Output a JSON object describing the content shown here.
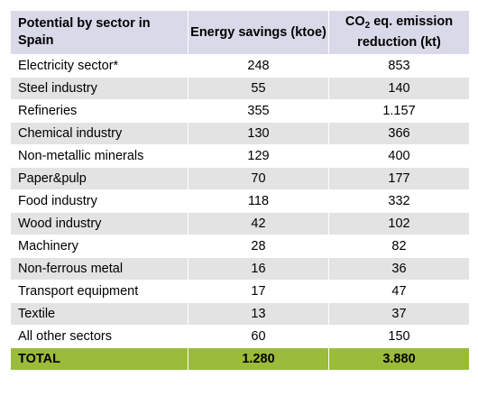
{
  "table": {
    "headers": {
      "sector": "Potential by sector in Spain",
      "energy": "Energy savings (ktoe)",
      "co2_prefix": "CO",
      "co2_sub": "2",
      "co2_suffix": " eq. emission reduction (kt)"
    },
    "rows": [
      {
        "sector": "Electricity sector*",
        "energy": "248",
        "co2": "853"
      },
      {
        "sector": "Steel industry",
        "energy": "55",
        "co2": "140"
      },
      {
        "sector": "Refineries",
        "energy": "355",
        "co2": "1.157"
      },
      {
        "sector": "Chemical industry",
        "energy": "130",
        "co2": "366"
      },
      {
        "sector": "Non-metallic minerals",
        "energy": "129",
        "co2": "400"
      },
      {
        "sector": "Paper&pulp",
        "energy": "70",
        "co2": "177"
      },
      {
        "sector": "Food industry",
        "energy": "118",
        "co2": "332"
      },
      {
        "sector": "Wood industry",
        "energy": "42",
        "co2": "102"
      },
      {
        "sector": "Machinery",
        "energy": "28",
        "co2": "82"
      },
      {
        "sector": "Non-ferrous metal",
        "energy": "16",
        "co2": "36"
      },
      {
        "sector": "Transport equipment",
        "energy": "17",
        "co2": "47"
      },
      {
        "sector": "Textile",
        "energy": "13",
        "co2": "37"
      },
      {
        "sector": "All other sectors",
        "energy": "60",
        "co2": "150"
      }
    ],
    "total": {
      "sector": "TOTAL",
      "energy": "1.280",
      "co2": "3.880"
    }
  },
  "colors": {
    "header_bg": "#d9d9e9",
    "stripe_bg": "#e3e3e3",
    "total_bg": "#9bbb3b"
  }
}
